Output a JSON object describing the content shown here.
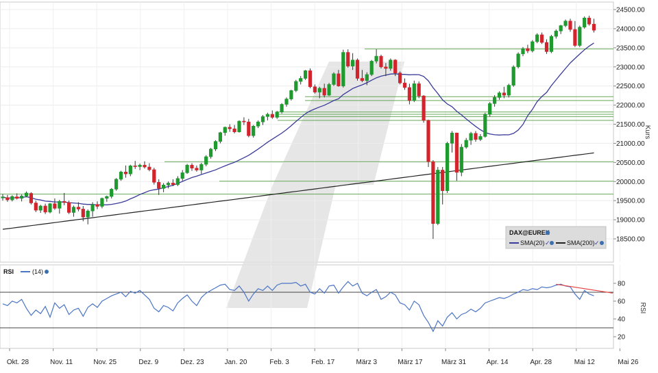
{
  "chart_data": {
    "type": "line",
    "x_labels": [
      "Okt. 28",
      "Nov. 11",
      "Nov. 25",
      "Dez. 9",
      "Dez. 23",
      "Jan. 20",
      "Feb. 3",
      "Feb. 17",
      "März 3",
      "März 17",
      "März 31",
      "Apr. 14",
      "Apr. 28",
      "Mai 12",
      "Mai 26"
    ],
    "price_panel": {
      "ylabel": "Kurs",
      "y_ticks": [
        "24500.00",
        "24000.00",
        "23500.00",
        "23000.00",
        "22500.00",
        "22000.00",
        "21500.00",
        "21000.00",
        "20500.00",
        "20000.00",
        "19500.00",
        "19000.00",
        "18500.00"
      ],
      "ylim": [
        18000,
        24600
      ],
      "legend_title": "DAX@EUREX",
      "legend_items": [
        {
          "label": "SMA(20)",
          "color": "#3a3a9a"
        },
        {
          "label": "SMA(200)",
          "color": "#222222"
        }
      ],
      "support_resistance_levels": [
        23470,
        22220,
        22120,
        21820,
        21760,
        21700,
        21600,
        20520,
        20010,
        19670
      ],
      "candles": [
        [
          0,
          19570,
          19670,
          19500,
          19600
        ],
        [
          1,
          19580,
          19650,
          19470,
          19520
        ],
        [
          2,
          19520,
          19640,
          19480,
          19610
        ],
        [
          3,
          19600,
          19690,
          19530,
          19560
        ],
        [
          4,
          19560,
          19660,
          19480,
          19620
        ],
        [
          5,
          19620,
          19740,
          19590,
          19700
        ],
        [
          6,
          19690,
          19720,
          19400,
          19440
        ],
        [
          7,
          19440,
          19500,
          19200,
          19250
        ],
        [
          8,
          19250,
          19390,
          19180,
          19360
        ],
        [
          9,
          19360,
          19420,
          19150,
          19200
        ],
        [
          10,
          19200,
          19440,
          19170,
          19420
        ],
        [
          11,
          19420,
          19560,
          19260,
          19300
        ],
        [
          12,
          19300,
          19520,
          19160,
          19480
        ],
        [
          13,
          19480,
          19700,
          19380,
          19450
        ],
        [
          14,
          19450,
          19500,
          19150,
          19190
        ],
        [
          15,
          19190,
          19370,
          19080,
          19330
        ],
        [
          16,
          19330,
          19460,
          19220,
          19280
        ],
        [
          17,
          19280,
          19360,
          18960,
          19070
        ],
        [
          18,
          19070,
          19270,
          18880,
          19230
        ],
        [
          19,
          19230,
          19460,
          19080,
          19400
        ],
        [
          20,
          19400,
          19480,
          19280,
          19350
        ],
        [
          21,
          19350,
          19580,
          19300,
          19560
        ],
        [
          22,
          19560,
          19630,
          19470,
          19610
        ],
        [
          23,
          19610,
          19830,
          19560,
          19800
        ],
        [
          24,
          19800,
          20090,
          19760,
          20060
        ],
        [
          25,
          20060,
          20280,
          20020,
          20250
        ],
        [
          26,
          20250,
          20420,
          20100,
          20200
        ],
        [
          27,
          20200,
          20440,
          20140,
          20410
        ],
        [
          28,
          20410,
          20540,
          20330,
          20390
        ],
        [
          29,
          20390,
          20470,
          20300,
          20430
        ],
        [
          30,
          20430,
          20530,
          20340,
          20380
        ],
        [
          31,
          20380,
          20480,
          20270,
          20310
        ],
        [
          32,
          20310,
          20360,
          19920,
          19980
        ],
        [
          33,
          19980,
          20060,
          19650,
          19820
        ],
        [
          34,
          19820,
          19960,
          19720,
          19910
        ],
        [
          35,
          19910,
          20000,
          19820,
          19960
        ],
        [
          36,
          19960,
          20060,
          19880,
          19920
        ],
        [
          37,
          19920,
          20140,
          19880,
          20080
        ],
        [
          38,
          20080,
          20300,
          20020,
          20230
        ],
        [
          39,
          20230,
          20460,
          20200,
          20430
        ],
        [
          40,
          20430,
          20480,
          20280,
          20350
        ],
        [
          41,
          20350,
          20420,
          20260,
          20300
        ],
        [
          42,
          20300,
          20490,
          20200,
          20450
        ],
        [
          43,
          20450,
          20690,
          20400,
          20650
        ],
        [
          44,
          20650,
          20880,
          20600,
          20850
        ],
        [
          45,
          20850,
          21080,
          20800,
          21050
        ],
        [
          46,
          21050,
          21300,
          21000,
          21280
        ],
        [
          47,
          21280,
          21440,
          21200,
          21420
        ],
        [
          48,
          21420,
          21500,
          21300,
          21380
        ],
        [
          49,
          21380,
          21480,
          21260,
          21300
        ],
        [
          50,
          21300,
          21600,
          21280,
          21580
        ],
        [
          51,
          21580,
          21680,
          21480,
          21560
        ],
        [
          52,
          21560,
          21640,
          21160,
          21200
        ],
        [
          53,
          21200,
          21480,
          21150,
          21450
        ],
        [
          54,
          21450,
          21600,
          21400,
          21560
        ],
        [
          55,
          21560,
          21740,
          21480,
          21700
        ],
        [
          56,
          21700,
          21800,
          21600,
          21760
        ],
        [
          57,
          21760,
          21860,
          21640,
          21680
        ],
        [
          58,
          21680,
          21850,
          21640,
          21820
        ],
        [
          59,
          21820,
          22050,
          21780,
          22020
        ],
        [
          60,
          22020,
          22200,
          21960,
          22160
        ],
        [
          61,
          22160,
          22400,
          22120,
          22380
        ],
        [
          62,
          22380,
          22660,
          22340,
          22620
        ],
        [
          63,
          22620,
          22760,
          22540,
          22700
        ],
        [
          64,
          22700,
          22920,
          22660,
          22900
        ],
        [
          65,
          22900,
          22960,
          22440,
          22480
        ],
        [
          66,
          22480,
          22540,
          22300,
          22340
        ],
        [
          67,
          22340,
          22480,
          22180,
          22440
        ],
        [
          68,
          22440,
          22560,
          22200,
          22260
        ],
        [
          69,
          22260,
          22580,
          22240,
          22540
        ],
        [
          70,
          22540,
          22860,
          22500,
          22820
        ],
        [
          71,
          22820,
          22920,
          22480,
          22500
        ],
        [
          72,
          22500,
          23450,
          22460,
          23380
        ],
        [
          73,
          23380,
          23460,
          22980,
          23020
        ],
        [
          74,
          23020,
          23360,
          22920,
          23180
        ],
        [
          75,
          23180,
          23220,
          22640,
          22700
        ],
        [
          76,
          22700,
          22920,
          22600,
          22640
        ],
        [
          77,
          22640,
          22860,
          22520,
          22800
        ],
        [
          78,
          22800,
          23180,
          22760,
          23150
        ],
        [
          79,
          23150,
          23460,
          23090,
          23280
        ],
        [
          80,
          23280,
          23320,
          22960,
          23000
        ],
        [
          81,
          23000,
          23100,
          22760,
          22960
        ],
        [
          82,
          22960,
          23220,
          22900,
          23180
        ],
        [
          83,
          23180,
          23200,
          22760,
          22840
        ],
        [
          84,
          22840,
          22880,
          22540,
          22580
        ],
        [
          85,
          22580,
          22700,
          22400,
          22460
        ],
        [
          86,
          22460,
          22560,
          22020,
          22120
        ],
        [
          87,
          22120,
          22640,
          22080,
          22560
        ],
        [
          88,
          22560,
          22620,
          22180,
          22240
        ],
        [
          89,
          22240,
          22260,
          21540,
          21600
        ],
        [
          90,
          21600,
          21620,
          20380,
          20520
        ],
        [
          91,
          20520,
          20560,
          18500,
          18900
        ],
        [
          92,
          18900,
          20380,
          18860,
          20300
        ],
        [
          93,
          20300,
          20380,
          19400,
          19760
        ],
        [
          94,
          19760,
          21040,
          19700,
          21000
        ],
        [
          95,
          21000,
          21320,
          20760,
          21270
        ],
        [
          96,
          21270,
          21280,
          20020,
          20240
        ],
        [
          97,
          20240,
          20980,
          20140,
          20900
        ],
        [
          98,
          20900,
          21140,
          20860,
          21080
        ],
        [
          99,
          21080,
          21300,
          20960,
          21260
        ],
        [
          100,
          21260,
          21320,
          21040,
          21100
        ],
        [
          101,
          21100,
          21240,
          21060,
          21180
        ],
        [
          102,
          21180,
          21800,
          21150,
          21760
        ],
        [
          103,
          21760,
          22080,
          21700,
          22040
        ],
        [
          104,
          22040,
          22260,
          21960,
          22200
        ],
        [
          105,
          22200,
          22360,
          22140,
          22320
        ],
        [
          106,
          22320,
          22480,
          22180,
          22260
        ],
        [
          107,
          22260,
          22560,
          22200,
          22520
        ],
        [
          108,
          22520,
          23040,
          22480,
          23000
        ],
        [
          109,
          23000,
          23380,
          22960,
          23340
        ],
        [
          110,
          23340,
          23520,
          23280,
          23480
        ],
        [
          111,
          23480,
          23580,
          23360,
          23420
        ],
        [
          112,
          23420,
          23700,
          23380,
          23660
        ],
        [
          113,
          23660,
          23880,
          23620,
          23840
        ],
        [
          114,
          23840,
          23900,
          23600,
          23640
        ],
        [
          115,
          23640,
          23720,
          23340,
          23400
        ],
        [
          116,
          23400,
          23840,
          23360,
          23800
        ],
        [
          117,
          23800,
          23980,
          23740,
          23940
        ],
        [
          118,
          23940,
          24100,
          23860,
          24080
        ],
        [
          119,
          24080,
          24240,
          24040,
          24200
        ],
        [
          120,
          24200,
          24260,
          23920,
          23980
        ],
        [
          121,
          23980,
          24200,
          23520,
          23560
        ],
        [
          122,
          23560,
          24080,
          23520,
          24040
        ],
        [
          123,
          24040,
          24320,
          24000,
          24280
        ],
        [
          124,
          24280,
          24340,
          24080,
          24120
        ],
        [
          125,
          24120,
          24260,
          23900,
          23960
        ]
      ]
    },
    "rsi_panel": {
      "title": "RSI",
      "legend_label": "(14)",
      "ylabel": "RSI",
      "y_ticks": [
        "80",
        "60",
        "40",
        "20"
      ],
      "ylim": [
        10,
        92
      ],
      "levels": [
        70,
        30
      ],
      "values": [
        57,
        55,
        60,
        58,
        62,
        52,
        44,
        50,
        46,
        54,
        42,
        58,
        52,
        56,
        45,
        50,
        52,
        43,
        53,
        57,
        53,
        60,
        63,
        66,
        68,
        70,
        65,
        71,
        69,
        72,
        67,
        62,
        52,
        48,
        55,
        53,
        49,
        58,
        63,
        67,
        60,
        55,
        64,
        69,
        72,
        75,
        78,
        79,
        73,
        72,
        77,
        70,
        60,
        68,
        74,
        72,
        77,
        72,
        78,
        80,
        80,
        80,
        81,
        77,
        79,
        70,
        68,
        74,
        69,
        77,
        78,
        69,
        76,
        82,
        77,
        80,
        69,
        66,
        70,
        73,
        62,
        65,
        70,
        67,
        58,
        56,
        50,
        60,
        56,
        44,
        36,
        26,
        38,
        32,
        42,
        47,
        40,
        45,
        47,
        51,
        48,
        52,
        58,
        60,
        62,
        64,
        63,
        65,
        68,
        70,
        73,
        72,
        74,
        73,
        76,
        75,
        76,
        78,
        79,
        77,
        76,
        68,
        62,
        72,
        68,
        66
      ]
    },
    "annotations": {
      "rsi_trendline_color": "#e44444"
    }
  }
}
